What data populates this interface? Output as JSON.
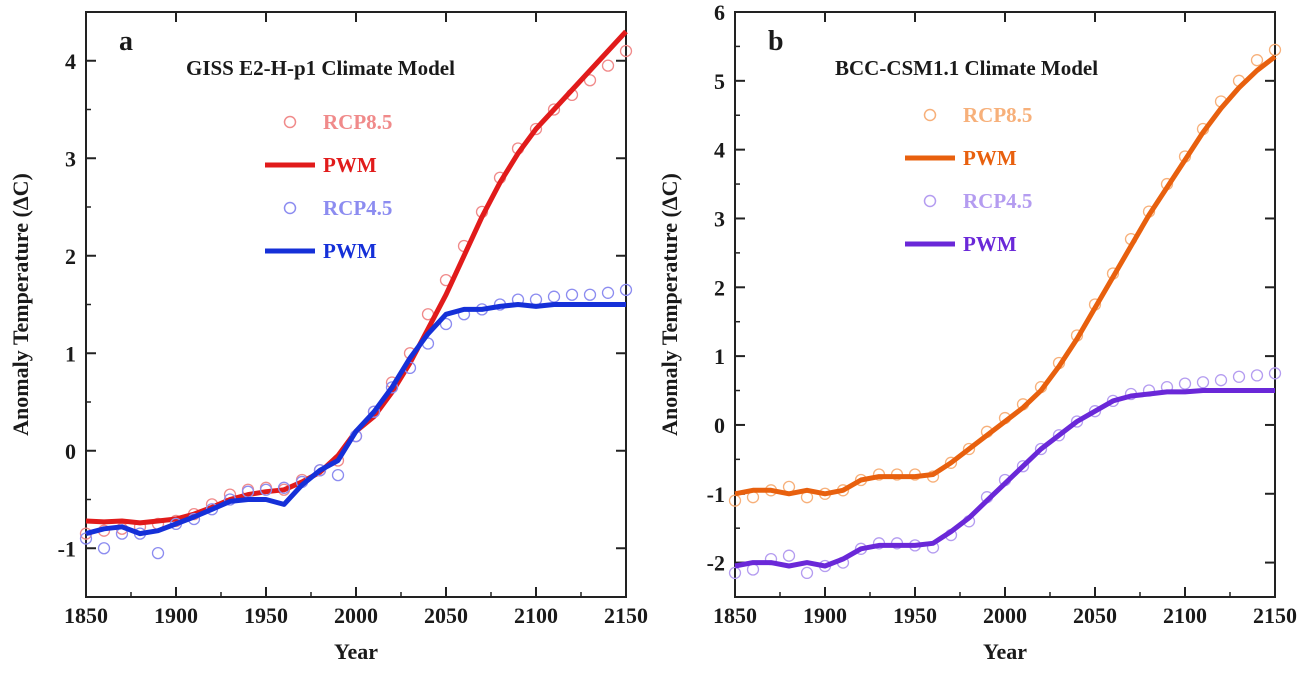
{
  "chart_data": [
    {
      "type": "line",
      "panel_letter": "a",
      "title": "GISS E2-H-p1 Climate Model",
      "xlabel": "Year",
      "ylabel": "Anomaly Temperature (ΔC)",
      "xlim": [
        1850,
        2150
      ],
      "ylim": [
        -1.5,
        4.5
      ],
      "xticks": [
        1850,
        1900,
        1950,
        2000,
        2050,
        2100,
        2150
      ],
      "yticks": [
        -1,
        0,
        1,
        2,
        3,
        4
      ],
      "grid": false,
      "legend_position": "top-center",
      "series": [
        {
          "name": "RCP8.5",
          "style": "circles",
          "color": "#f08a8a",
          "x": [
            1850,
            1860,
            1870,
            1880,
            1890,
            1900,
            1910,
            1920,
            1930,
            1940,
            1950,
            1960,
            1970,
            1980,
            1990,
            2000,
            2010,
            2020,
            2030,
            2040,
            2050,
            2060,
            2070,
            2080,
            2090,
            2100,
            2110,
            2120,
            2130,
            2140,
            2150
          ],
          "y": [
            -0.85,
            -0.82,
            -0.8,
            -0.78,
            -0.75,
            -0.72,
            -0.65,
            -0.55,
            -0.45,
            -0.4,
            -0.38,
            -0.4,
            -0.3,
            -0.2,
            -0.1,
            0.15,
            0.4,
            0.7,
            1.0,
            1.4,
            1.75,
            2.1,
            2.45,
            2.8,
            3.1,
            3.3,
            3.5,
            3.65,
            3.8,
            3.95,
            4.1
          ]
        },
        {
          "name": "PWM",
          "style": "line",
          "color": "#e11b1b",
          "x": [
            1850,
            1860,
            1870,
            1880,
            1890,
            1900,
            1910,
            1920,
            1930,
            1940,
            1950,
            1960,
            1970,
            1980,
            1990,
            2000,
            2010,
            2020,
            2030,
            2040,
            2050,
            2060,
            2070,
            2080,
            2090,
            2100,
            2110,
            2120,
            2130,
            2140,
            2150
          ],
          "y": [
            -0.72,
            -0.73,
            -0.72,
            -0.74,
            -0.72,
            -0.7,
            -0.65,
            -0.58,
            -0.5,
            -0.45,
            -0.42,
            -0.4,
            -0.32,
            -0.22,
            -0.05,
            0.2,
            0.35,
            0.6,
            0.9,
            1.25,
            1.6,
            2.0,
            2.4,
            2.75,
            3.05,
            3.3,
            3.5,
            3.7,
            3.9,
            4.1,
            4.3
          ]
        },
        {
          "name": "RCP4.5",
          "style": "circles",
          "color": "#8c8cf0",
          "x": [
            1850,
            1860,
            1870,
            1880,
            1890,
            1900,
            1910,
            1920,
            1930,
            1940,
            1950,
            1960,
            1970,
            1980,
            1990,
            2000,
            2010,
            2020,
            2030,
            2040,
            2050,
            2060,
            2070,
            2080,
            2090,
            2100,
            2110,
            2120,
            2130,
            2140,
            2150
          ],
          "y": [
            -0.9,
            -1.0,
            -0.85,
            -0.85,
            -1.05,
            -0.75,
            -0.7,
            -0.6,
            -0.5,
            -0.42,
            -0.4,
            -0.38,
            -0.32,
            -0.2,
            -0.25,
            0.15,
            0.4,
            0.65,
            0.85,
            1.1,
            1.3,
            1.4,
            1.45,
            1.5,
            1.55,
            1.55,
            1.58,
            1.6,
            1.6,
            1.62,
            1.65
          ]
        },
        {
          "name": "PWM",
          "style": "line",
          "color": "#1530d8",
          "x": [
            1850,
            1860,
            1870,
            1880,
            1890,
            1900,
            1910,
            1920,
            1930,
            1940,
            1950,
            1960,
            1970,
            1980,
            1990,
            2000,
            2010,
            2020,
            2030,
            2040,
            2050,
            2060,
            2070,
            2080,
            2090,
            2100,
            2110,
            2120,
            2130,
            2140,
            2150
          ],
          "y": [
            -0.85,
            -0.8,
            -0.78,
            -0.85,
            -0.82,
            -0.75,
            -0.68,
            -0.6,
            -0.52,
            -0.5,
            -0.5,
            -0.55,
            -0.35,
            -0.2,
            -0.1,
            0.2,
            0.4,
            0.65,
            0.95,
            1.2,
            1.4,
            1.45,
            1.45,
            1.48,
            1.5,
            1.48,
            1.5,
            1.5,
            1.5,
            1.5,
            1.5
          ]
        }
      ]
    },
    {
      "type": "line",
      "panel_letter": "b",
      "title": "BCC-CSM1.1 Climate Model",
      "xlabel": "Year",
      "ylabel": "Anomaly Temperature (ΔC)",
      "xlim": [
        1850,
        2150
      ],
      "ylim": [
        -2.5,
        6.0
      ],
      "xticks": [
        1850,
        1900,
        1950,
        2000,
        2050,
        2100,
        2150
      ],
      "yticks": [
        -2,
        -1,
        0,
        1,
        2,
        3,
        4,
        5,
        6
      ],
      "grid": false,
      "legend_position": "top-center",
      "series": [
        {
          "name": "RCP8.5",
          "style": "circles",
          "color": "#f7b07a",
          "x": [
            1850,
            1860,
            1870,
            1880,
            1890,
            1900,
            1910,
            1920,
            1930,
            1940,
            1950,
            1960,
            1970,
            1980,
            1990,
            2000,
            2010,
            2020,
            2030,
            2040,
            2050,
            2060,
            2070,
            2080,
            2090,
            2100,
            2110,
            2120,
            2130,
            2140,
            2150
          ],
          "y": [
            -1.1,
            -1.05,
            -0.95,
            -0.9,
            -1.05,
            -1.0,
            -0.95,
            -0.8,
            -0.72,
            -0.72,
            -0.72,
            -0.75,
            -0.55,
            -0.35,
            -0.1,
            0.1,
            0.3,
            0.55,
            0.9,
            1.3,
            1.75,
            2.2,
            2.7,
            3.1,
            3.5,
            3.9,
            4.3,
            4.7,
            5.0,
            5.3,
            5.45
          ]
        },
        {
          "name": "PWM",
          "style": "line",
          "color": "#e8600e",
          "x": [
            1850,
            1860,
            1870,
            1880,
            1890,
            1900,
            1910,
            1920,
            1930,
            1940,
            1950,
            1960,
            1970,
            1980,
            1990,
            2000,
            2010,
            2020,
            2030,
            2040,
            2050,
            2060,
            2070,
            2080,
            2090,
            2100,
            2110,
            2120,
            2130,
            2140,
            2150
          ],
          "y": [
            -1.0,
            -0.95,
            -0.95,
            -1.0,
            -0.95,
            -1.0,
            -0.95,
            -0.8,
            -0.75,
            -0.75,
            -0.75,
            -0.72,
            -0.55,
            -0.35,
            -0.15,
            0.05,
            0.25,
            0.5,
            0.85,
            1.25,
            1.7,
            2.15,
            2.6,
            3.05,
            3.45,
            3.85,
            4.25,
            4.6,
            4.9,
            5.15,
            5.35
          ]
        },
        {
          "name": "RCP4.5",
          "style": "circles",
          "color": "#b49cf0",
          "x": [
            1850,
            1860,
            1870,
            1880,
            1890,
            1900,
            1910,
            1920,
            1930,
            1940,
            1950,
            1960,
            1970,
            1980,
            1990,
            2000,
            2010,
            2020,
            2030,
            2040,
            2050,
            2060,
            2070,
            2080,
            2090,
            2100,
            2110,
            2120,
            2130,
            2140,
            2150
          ],
          "y": [
            -2.15,
            -2.1,
            -1.95,
            -1.9,
            -2.15,
            -2.05,
            -2.0,
            -1.8,
            -1.72,
            -1.72,
            -1.75,
            -1.78,
            -1.6,
            -1.4,
            -1.05,
            -0.8,
            -0.6,
            -0.35,
            -0.15,
            0.05,
            0.2,
            0.35,
            0.45,
            0.5,
            0.55,
            0.6,
            0.62,
            0.65,
            0.7,
            0.72,
            0.75
          ]
        },
        {
          "name": "PWM",
          "style": "line",
          "color": "#6a28d8",
          "x": [
            1850,
            1860,
            1870,
            1880,
            1890,
            1900,
            1910,
            1920,
            1930,
            1940,
            1950,
            1960,
            1970,
            1980,
            1990,
            2000,
            2010,
            2020,
            2030,
            2040,
            2050,
            2060,
            2070,
            2080,
            2090,
            2100,
            2110,
            2120,
            2130,
            2140,
            2150
          ],
          "y": [
            -2.05,
            -2.0,
            -2.0,
            -2.05,
            -2.0,
            -2.05,
            -1.95,
            -1.8,
            -1.75,
            -1.75,
            -1.75,
            -1.72,
            -1.55,
            -1.35,
            -1.1,
            -0.85,
            -0.6,
            -0.35,
            -0.15,
            0.05,
            0.2,
            0.35,
            0.42,
            0.45,
            0.48,
            0.48,
            0.5,
            0.5,
            0.5,
            0.5,
            0.5
          ]
        }
      ]
    }
  ]
}
